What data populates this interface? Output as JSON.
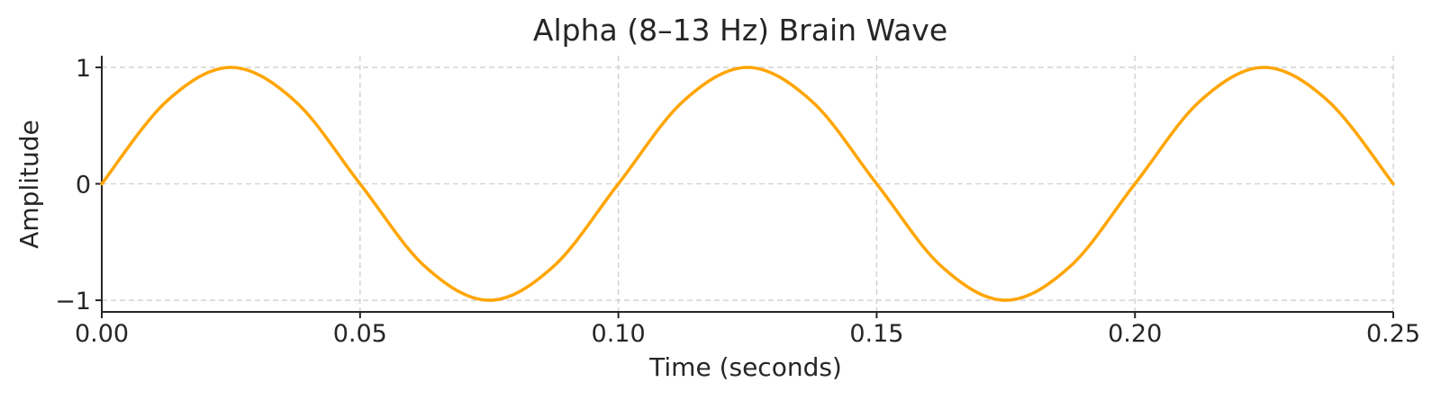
{
  "chart_data": {
    "type": "line",
    "title": "Alpha (8–13 Hz) Brain Wave",
    "xlabel": "Time (seconds)",
    "ylabel": "Amplitude",
    "xlim": [
      0,
      0.25
    ],
    "ylim": [
      -1.1,
      1.1
    ],
    "x_ticks": [
      0,
      0.05,
      0.1,
      0.15,
      0.2,
      0.25
    ],
    "x_tick_labels": [
      "0.00",
      "0.05",
      "0.10",
      "0.15",
      "0.20",
      "0.25"
    ],
    "y_ticks": [
      1,
      0,
      -1
    ],
    "y_tick_labels": [
      "1",
      "0",
      "−1"
    ],
    "grid": true,
    "legend": "none",
    "series": [
      {
        "color": "#FFA500",
        "x": [
          0,
          0.0125,
          0.025,
          0.0375,
          0.05,
          0.0625,
          0.075,
          0.0875,
          0.1,
          0.1125,
          0.125,
          0.1375,
          0.15,
          0.1625,
          0.175,
          0.1875,
          0.2,
          0.2125,
          0.225,
          0.2375,
          0.25
        ],
        "y": [
          0,
          0.707,
          1,
          0.707,
          0,
          -0.707,
          -1,
          -0.707,
          0,
          0.707,
          1,
          0.707,
          0,
          -0.707,
          -1,
          -0.707,
          0,
          0.707,
          1,
          0.707,
          0
        ]
      }
    ]
  }
}
